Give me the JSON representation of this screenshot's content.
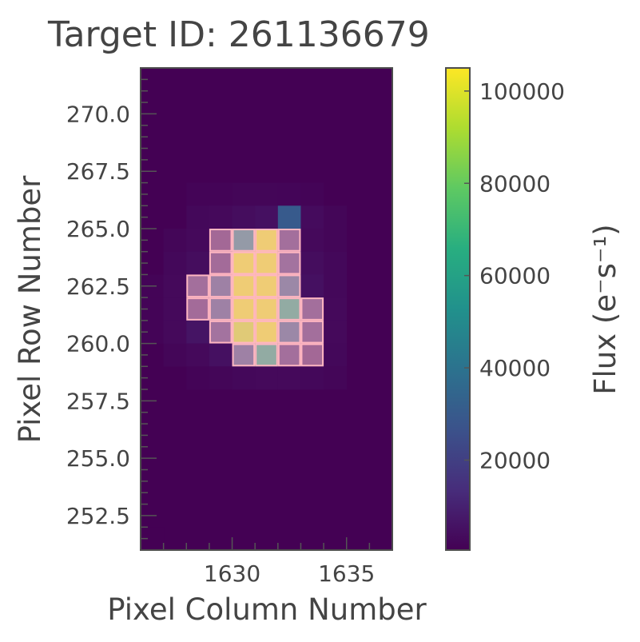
{
  "chart_data": {
    "type": "heatmap",
    "title": "Target ID: 261136679",
    "xlabel": "Pixel Column Number",
    "ylabel": "Pixel Row Number",
    "colorbar_label": "Flux (e⁻s⁻¹)",
    "xlim": [
      1626,
      1637
    ],
    "ylim": [
      251,
      272
    ],
    "x_ticks": [
      1630,
      1635
    ],
    "y_ticks": [
      252.5,
      255.0,
      257.5,
      260.0,
      262.5,
      265.0,
      267.5,
      270.0
    ],
    "colorbar_ticks": [
      20000,
      40000,
      60000,
      80000,
      100000
    ],
    "colorbar_range": [
      500,
      105000
    ],
    "colormap": "viridis",
    "background_flux": 500,
    "mask_color": "#ffb6c1",
    "pixels": [
      {
        "col": 1626,
        "row": 251,
        "flux": 500
      },
      {
        "col": 1628,
        "row": 266,
        "flux": 1500
      },
      {
        "col": 1629,
        "row": 266,
        "flux": 1500
      },
      {
        "col": 1630,
        "row": 266,
        "flux": 2000
      },
      {
        "col": 1631,
        "row": 266,
        "flux": 2000
      },
      {
        "col": 1632,
        "row": 266,
        "flux": 1800
      },
      {
        "col": 1633,
        "row": 266,
        "flux": 1500
      },
      {
        "col": 1628,
        "row": 265,
        "flux": 2500
      },
      {
        "col": 1629,
        "row": 265,
        "flux": 3000
      },
      {
        "col": 1630,
        "row": 265,
        "flux": 4000
      },
      {
        "col": 1631,
        "row": 265,
        "flux": 5000
      },
      {
        "col": 1632,
        "row": 265,
        "flux": 30000
      },
      {
        "col": 1633,
        "row": 265,
        "flux": 3500
      },
      {
        "col": 1634,
        "row": 265,
        "flux": 2000
      },
      {
        "col": 1627,
        "row": 264,
        "flux": 2000
      },
      {
        "col": 1628,
        "row": 264,
        "flux": 3000
      },
      {
        "col": 1629,
        "row": 264,
        "flux": 8000,
        "mask": true
      },
      {
        "col": 1630,
        "row": 264,
        "flux": 45000,
        "mask": true
      },
      {
        "col": 1631,
        "row": 264,
        "flux": 100000,
        "mask": true
      },
      {
        "col": 1632,
        "row": 264,
        "flux": 12000,
        "mask": true
      },
      {
        "col": 1633,
        "row": 264,
        "flux": 3000
      },
      {
        "col": 1634,
        "row": 264,
        "flux": 2000
      },
      {
        "col": 1627,
        "row": 263,
        "flux": 2500
      },
      {
        "col": 1628,
        "row": 263,
        "flux": 4000
      },
      {
        "col": 1629,
        "row": 263,
        "flux": 10000,
        "mask": true
      },
      {
        "col": 1630,
        "row": 263,
        "flux": 100000,
        "mask": true
      },
      {
        "col": 1631,
        "row": 263,
        "flux": 100000,
        "mask": true
      },
      {
        "col": 1632,
        "row": 263,
        "flux": 15000,
        "mask": true
      },
      {
        "col": 1633,
        "row": 263,
        "flux": 4000
      },
      {
        "col": 1634,
        "row": 263,
        "flux": 2500
      },
      {
        "col": 1626,
        "row": 262,
        "flux": 1500
      },
      {
        "col": 1627,
        "row": 262,
        "flux": 3000
      },
      {
        "col": 1628,
        "row": 262,
        "flux": 12000,
        "mask": true
      },
      {
        "col": 1629,
        "row": 262,
        "flux": 25000,
        "mask": true
      },
      {
        "col": 1630,
        "row": 262,
        "flux": 100000,
        "mask": true
      },
      {
        "col": 1631,
        "row": 262,
        "flux": 100000,
        "mask": true
      },
      {
        "col": 1632,
        "row": 262,
        "flux": 30000,
        "mask": true
      },
      {
        "col": 1633,
        "row": 262,
        "flux": 5000
      },
      {
        "col": 1634,
        "row": 262,
        "flux": 2500
      },
      {
        "col": 1626,
        "row": 261,
        "flux": 1500
      },
      {
        "col": 1627,
        "row": 261,
        "flux": 3000
      },
      {
        "col": 1628,
        "row": 261,
        "flux": 10000,
        "mask": true
      },
      {
        "col": 1629,
        "row": 261,
        "flux": 25000,
        "mask": true
      },
      {
        "col": 1630,
        "row": 261,
        "flux": 100000,
        "mask": true
      },
      {
        "col": 1631,
        "row": 261,
        "flux": 100000,
        "mask": true
      },
      {
        "col": 1632,
        "row": 261,
        "flux": 60000,
        "mask": true
      },
      {
        "col": 1633,
        "row": 261,
        "flux": 12000,
        "mask": true
      },
      {
        "col": 1634,
        "row": 261,
        "flux": 3000
      },
      {
        "col": 1626,
        "row": 260,
        "flux": 1500
      },
      {
        "col": 1627,
        "row": 260,
        "flux": 3000
      },
      {
        "col": 1628,
        "row": 260,
        "flux": 6000
      },
      {
        "col": 1629,
        "row": 260,
        "flux": 15000,
        "mask": true
      },
      {
        "col": 1630,
        "row": 260,
        "flux": 95000,
        "mask": true
      },
      {
        "col": 1631,
        "row": 260,
        "flux": 100000,
        "mask": true
      },
      {
        "col": 1632,
        "row": 260,
        "flux": 30000,
        "mask": true
      },
      {
        "col": 1633,
        "row": 260,
        "flux": 12000,
        "mask": true
      },
      {
        "col": 1634,
        "row": 260,
        "flux": 3000
      },
      {
        "col": 1627,
        "row": 259,
        "flux": 2000
      },
      {
        "col": 1628,
        "row": 259,
        "flux": 3000
      },
      {
        "col": 1629,
        "row": 259,
        "flux": 5000
      },
      {
        "col": 1630,
        "row": 259,
        "flux": 25000,
        "mask": true
      },
      {
        "col": 1631,
        "row": 259,
        "flux": 60000,
        "mask": true
      },
      {
        "col": 1632,
        "row": 259,
        "flux": 12000,
        "mask": true
      },
      {
        "col": 1633,
        "row": 259,
        "flux": 8000,
        "mask": true
      },
      {
        "col": 1634,
        "row": 259,
        "flux": 2500
      },
      {
        "col": 1628,
        "row": 258,
        "flux": 1500
      },
      {
        "col": 1629,
        "row": 258,
        "flux": 2000
      },
      {
        "col": 1630,
        "row": 258,
        "flux": 2500
      },
      {
        "col": 1631,
        "row": 258,
        "flux": 3000
      },
      {
        "col": 1632,
        "row": 258,
        "flux": 3000
      },
      {
        "col": 1633,
        "row": 258,
        "flux": 2500
      },
      {
        "col": 1634,
        "row": 258,
        "flux": 2000
      }
    ]
  }
}
